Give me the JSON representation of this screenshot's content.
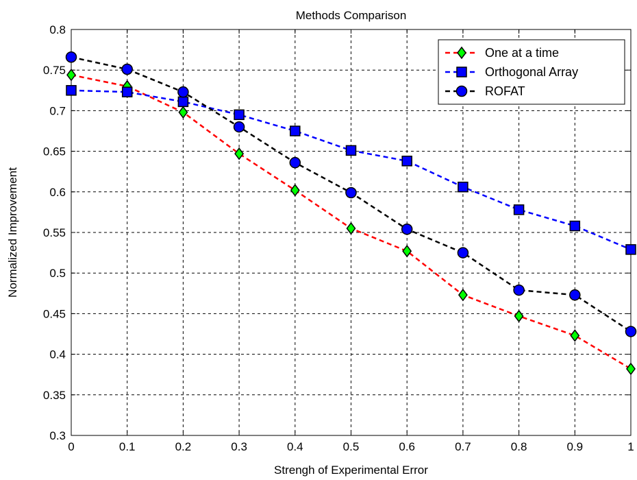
{
  "chart_data": {
    "type": "line",
    "title": "Methods Comparison",
    "xlabel": "Strengh of Experimental Error",
    "ylabel": "Normalized Improvement",
    "xlim": [
      0,
      1
    ],
    "ylim": [
      0.3,
      0.8
    ],
    "xticks": [
      "0",
      "0.1",
      "0.2",
      "0.3",
      "0.4",
      "0.5",
      "0.6",
      "0.7",
      "0.8",
      "0.9",
      "1"
    ],
    "yticks": [
      "0.3",
      "0.35",
      "0.4",
      "0.45",
      "0.5",
      "0.55",
      "0.6",
      "0.65",
      "0.7",
      "0.75",
      "0.8"
    ],
    "grid": true,
    "legend_position": "top-right",
    "x": [
      0,
      0.1,
      0.2,
      0.3,
      0.4,
      0.5,
      0.6,
      0.7,
      0.8,
      0.9,
      1.0
    ],
    "series": [
      {
        "name": "One at a time",
        "line_color": "#ff0000",
        "marker": "diamond",
        "marker_color": "#00ff00",
        "values": [
          0.744,
          0.73,
          0.698,
          0.647,
          0.602,
          0.555,
          0.527,
          0.473,
          0.447,
          0.423,
          0.382
        ]
      },
      {
        "name": "Orthogonal Array",
        "line_color": "#0000ff",
        "marker": "square",
        "marker_color": "#0000ff",
        "values": [
          0.725,
          0.723,
          0.711,
          0.695,
          0.675,
          0.651,
          0.638,
          0.606,
          0.578,
          0.558,
          0.529
        ]
      },
      {
        "name": "ROFAT",
        "line_color": "#000000",
        "marker": "circle",
        "marker_color": "#0000ff",
        "values": [
          0.766,
          0.751,
          0.723,
          0.68,
          0.636,
          0.599,
          0.554,
          0.525,
          0.479,
          0.473,
          0.428
        ]
      }
    ]
  }
}
